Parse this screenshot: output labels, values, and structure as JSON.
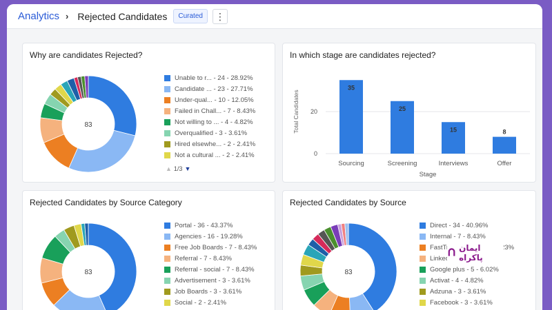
{
  "header": {
    "breadcrumb_root": "Analytics",
    "breadcrumb_sep": "›",
    "page_title": "Rejected Candidates",
    "badge": "Curated",
    "more_icon": "⋮"
  },
  "cards": {
    "reasons": {
      "title": "Why are candidates Rejected?",
      "total": "83",
      "pager": "1/3",
      "items": [
        {
          "label": "Unable to r... - 24 - 28.92%",
          "color": "#2f7ce0"
        },
        {
          "label": "Candidate ... - 23 - 27.71%",
          "color": "#8ab8f4"
        },
        {
          "label": "Under-qual... - 10 - 12.05%",
          "color": "#ec7f22"
        },
        {
          "label": "Failed in Chall... - 7 - 8.43%",
          "color": "#f5b27e"
        },
        {
          "label": "Not willing to ... - 4 - 4.82%",
          "color": "#19a05a"
        },
        {
          "label": "Overqualified - 3 - 3.61%",
          "color": "#86d4b0"
        },
        {
          "label": "Hired elsewhe... - 2 - 2.41%",
          "color": "#a09a1e"
        },
        {
          "label": "Not a cultural ... - 2 - 2.41%",
          "color": "#e0d74a"
        }
      ]
    },
    "stages": {
      "title": "In which stage are candidates rejected?",
      "ylabel": "Total Candidates",
      "xlabel": "Stage"
    },
    "source_category": {
      "title": "Rejected Candidates by Source Category",
      "total": "83",
      "items": [
        {
          "label": "Portal - 36 - 43.37%",
          "color": "#2f7ce0"
        },
        {
          "label": "Agencies - 16 - 19.28%",
          "color": "#8ab8f4"
        },
        {
          "label": "Free Job Boards - 7 - 8.43%",
          "color": "#ec7f22"
        },
        {
          "label": "Referral - 7 - 8.43%",
          "color": "#f5b27e"
        },
        {
          "label": "Referral - social - 7 - 8.43%",
          "color": "#19a05a"
        },
        {
          "label": "Advertisement - 3 - 3.61%",
          "color": "#86d4b0"
        },
        {
          "label": "Job Boards - 3 - 3.61%",
          "color": "#a09a1e"
        },
        {
          "label": "Social - 2 - 2.41%",
          "color": "#e0d74a"
        }
      ]
    },
    "source": {
      "title": "Rejected Candidates by Source",
      "total": "83",
      "items": [
        {
          "label": "Direct - 34 - 40.96%",
          "color": "#2f7ce0"
        },
        {
          "label": "Internal - 7 - 8.43%",
          "color": "#8ab8f4"
        },
        {
          "label": "FastTrack Care... - 6 - 7.23%",
          "color": "#ec7f22"
        },
        {
          "label": "LinkedIn - 5 - 6.02%",
          "color": "#f5b27e"
        },
        {
          "label": "Google plus - 5 - 6.02%",
          "color": "#19a05a"
        },
        {
          "label": "Activat - 4 - 4.82%",
          "color": "#86d4b0"
        },
        {
          "label": "Adzuna - 3 - 3.61%",
          "color": "#a09a1e"
        },
        {
          "label": "Facebook - 3 - 3.61%",
          "color": "#e0d74a"
        }
      ]
    }
  },
  "brand": {
    "text": "ایمان پاکراه"
  },
  "chart_data": [
    {
      "type": "pie",
      "title": "Why are candidates Rejected?",
      "total": 83,
      "values": [
        24,
        23,
        10,
        7,
        4,
        3,
        2,
        2,
        2,
        2,
        1,
        1,
        1,
        1
      ],
      "colors": [
        "#2f7ce0",
        "#8ab8f4",
        "#ec7f22",
        "#f5b27e",
        "#19a05a",
        "#86d4b0",
        "#a09a1e",
        "#e0d74a",
        "#2aa5b8",
        "#1e5fa8",
        "#d62a5a",
        "#555555",
        "#4a8f2e",
        "#7a3db8"
      ]
    },
    {
      "type": "bar",
      "title": "In which stage are candidates rejected?",
      "categories": [
        "Sourcing",
        "Screening",
        "Interviews",
        "Offer"
      ],
      "values": [
        35,
        25,
        15,
        8
      ],
      "xlabel": "Stage",
      "ylabel": "Total Candidates",
      "ylim": [
        0,
        40
      ],
      "yticks": [
        0,
        20
      ],
      "color": "#2f7ce0"
    },
    {
      "type": "pie",
      "title": "Rejected Candidates by Source Category",
      "total": 83,
      "values": [
        36,
        16,
        7,
        7,
        7,
        3,
        3,
        2,
        1,
        1
      ],
      "colors": [
        "#2f7ce0",
        "#8ab8f4",
        "#ec7f22",
        "#f5b27e",
        "#19a05a",
        "#86d4b0",
        "#a09a1e",
        "#e0d74a",
        "#2aa5b8",
        "#1e5fa8"
      ]
    },
    {
      "type": "pie",
      "title": "Rejected Candidates by Source",
      "total": 83,
      "values": [
        34,
        7,
        6,
        5,
        5,
        4,
        3,
        3,
        3,
        2,
        2,
        2,
        2,
        2,
        1,
        1,
        1
      ],
      "colors": [
        "#2f7ce0",
        "#8ab8f4",
        "#ec7f22",
        "#f5b27e",
        "#19a05a",
        "#86d4b0",
        "#a09a1e",
        "#e0d74a",
        "#2aa5b8",
        "#1e5fa8",
        "#d62a5a",
        "#555555",
        "#4a8f2e",
        "#7a3db8",
        "#c9a0dc",
        "#f08080",
        "#9ec0f0"
      ]
    }
  ]
}
